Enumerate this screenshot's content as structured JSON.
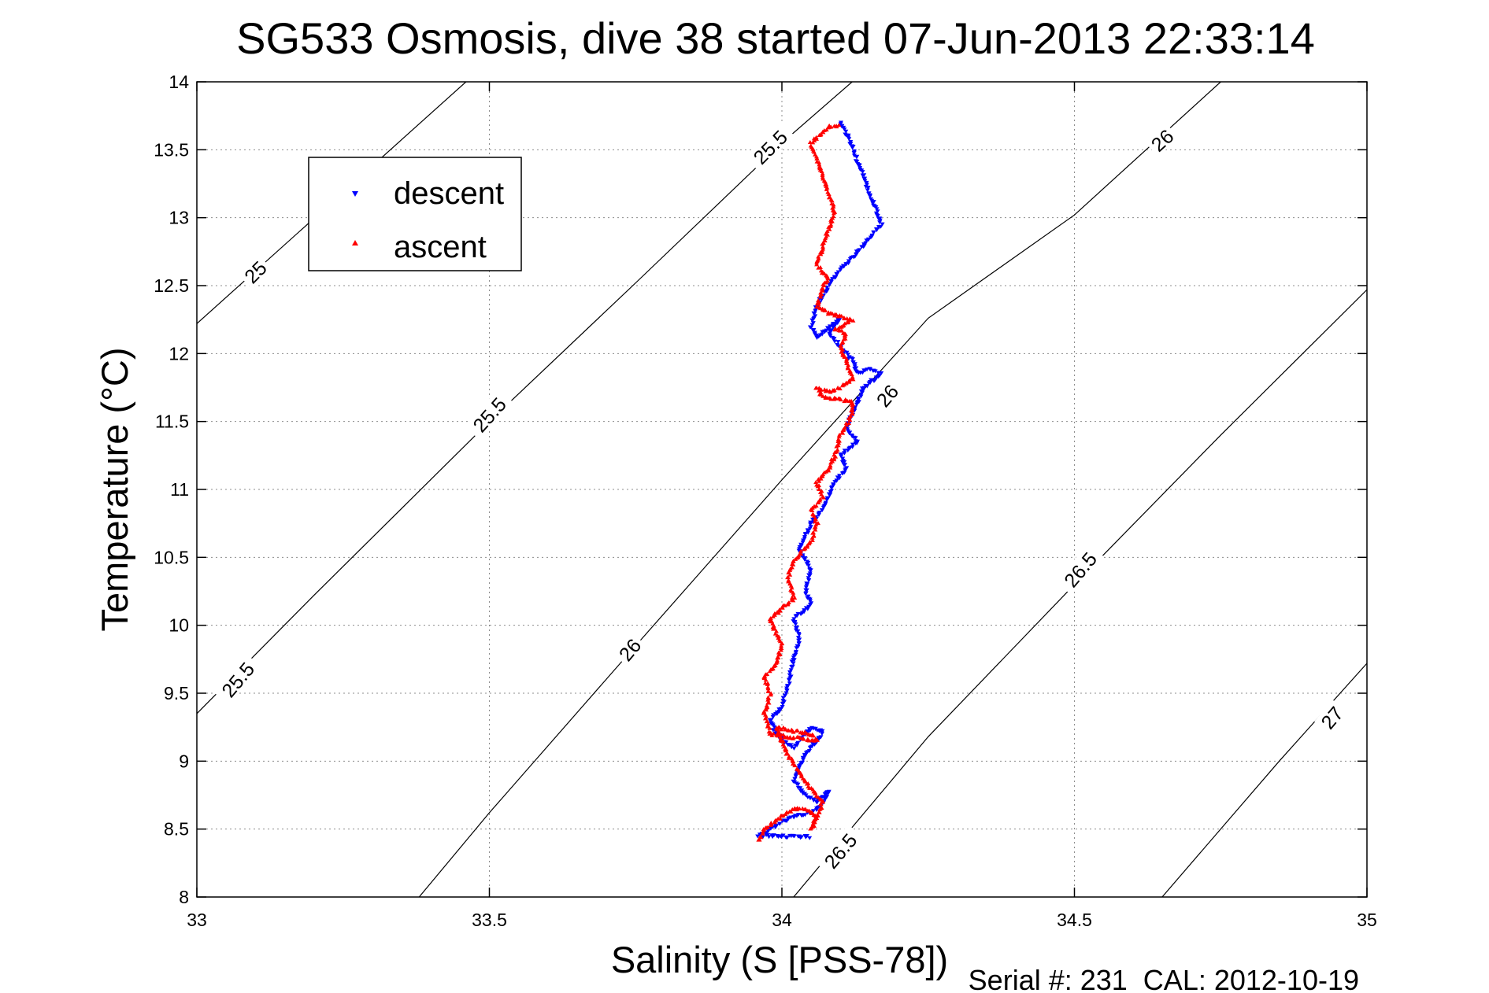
{
  "chart_data": {
    "type": "scatter",
    "title": "SG533 Osmosis, dive 38 started 07-Jun-2013 22:33:14",
    "xlabel": "Salinity (S [PSS-78])",
    "ylabel": "Temperature (°C)",
    "xlim": [
      33,
      35
    ],
    "ylim": [
      8,
      14
    ],
    "xticks": [
      33,
      33.5,
      34,
      34.5,
      35
    ],
    "xtick_labels": [
      "33",
      "33.5",
      "34",
      "34.5",
      "35"
    ],
    "yticks": [
      8,
      8.5,
      9,
      9.5,
      10,
      10.5,
      11,
      11.5,
      12,
      12.5,
      13,
      13.5,
      14
    ],
    "ytick_labels": [
      "8",
      "8.5",
      "9",
      "9.5",
      "10",
      "10.5",
      "11",
      "11.5",
      "12",
      "12.5",
      "13",
      "13.5",
      "14"
    ],
    "grid": true,
    "legend_position": "top-left",
    "footer": "Serial #: 231  CAL: 2012-10-19",
    "density_contours": [
      {
        "sigma": 25,
        "points": [
          [
            33.0,
            12.22
          ],
          [
            33.46,
            14.0
          ]
        ]
      },
      {
        "sigma": 25.5,
        "points": [
          [
            33.0,
            9.35
          ],
          [
            33.2,
            10.22
          ],
          [
            33.5,
            11.5
          ],
          [
            33.75,
            12.52
          ],
          [
            34.0,
            13.55
          ],
          [
            34.12,
            14.0
          ]
        ]
      },
      {
        "sigma": 26,
        "points": [
          [
            33.38,
            8.0
          ],
          [
            33.5,
            8.62
          ],
          [
            33.75,
            9.85
          ],
          [
            34.0,
            11.07
          ],
          [
            34.25,
            12.26
          ],
          [
            34.5,
            13.02
          ],
          [
            34.75,
            14.0
          ]
        ]
      },
      {
        "sigma": 26.5,
        "points": [
          [
            34.02,
            8.0
          ],
          [
            34.25,
            9.18
          ],
          [
            34.5,
            10.3
          ],
          [
            34.75,
            11.4
          ],
          [
            35.0,
            12.47
          ]
        ]
      },
      {
        "sigma": 27,
        "points": [
          [
            34.65,
            8.0
          ],
          [
            34.85,
            9.0
          ],
          [
            35.0,
            9.72
          ]
        ]
      }
    ],
    "contour_labels": [
      {
        "text": "25",
        "x": 33.1,
        "y": 12.6,
        "angle": -45
      },
      {
        "text": "25.5",
        "x": 33.98,
        "y": 13.52,
        "angle": -45
      },
      {
        "text": "25.5",
        "x": 33.5,
        "y": 11.55,
        "angle": -48
      },
      {
        "text": "25.5",
        "x": 33.07,
        "y": 9.6,
        "angle": -50
      },
      {
        "text": "26",
        "x": 33.74,
        "y": 9.82,
        "angle": -50
      },
      {
        "text": "26",
        "x": 34.18,
        "y": 11.69,
        "angle": -50
      },
      {
        "text": "26",
        "x": 34.65,
        "y": 13.57,
        "angle": -42
      },
      {
        "text": "26.5",
        "x": 34.51,
        "y": 10.41,
        "angle": -50
      },
      {
        "text": "26.5",
        "x": 34.1,
        "y": 8.34,
        "angle": -50
      },
      {
        "text": "27",
        "x": 34.94,
        "y": 9.32,
        "angle": -50
      }
    ],
    "series": [
      {
        "name": "descent",
        "marker": "triangle-down",
        "color": "#0000ff",
        "path": [
          [
            34.1,
            13.7
          ],
          [
            34.11,
            13.62
          ],
          [
            34.12,
            13.52
          ],
          [
            34.17,
            12.95
          ],
          [
            34.12,
            12.7
          ],
          [
            34.1,
            12.62
          ],
          [
            34.08,
            12.5
          ],
          [
            34.06,
            12.35
          ],
          [
            34.05,
            12.2
          ],
          [
            34.06,
            12.12
          ],
          [
            34.1,
            12.25
          ],
          [
            34.08,
            12.15
          ],
          [
            34.1,
            12.05
          ],
          [
            34.12,
            11.95
          ],
          [
            34.13,
            11.85
          ],
          [
            34.15,
            11.88
          ],
          [
            34.17,
            11.85
          ],
          [
            34.14,
            11.75
          ],
          [
            34.13,
            11.65
          ],
          [
            34.12,
            11.55
          ],
          [
            34.11,
            11.45
          ],
          [
            34.13,
            11.35
          ],
          [
            34.1,
            11.25
          ],
          [
            34.11,
            11.15
          ],
          [
            34.09,
            11.05
          ],
          [
            34.08,
            10.95
          ],
          [
            34.07,
            10.85
          ],
          [
            34.05,
            10.75
          ],
          [
            34.04,
            10.65
          ],
          [
            34.03,
            10.55
          ],
          [
            34.05,
            10.4
          ],
          [
            34.04,
            10.25
          ],
          [
            34.05,
            10.15
          ],
          [
            34.02,
            10.05
          ],
          [
            34.03,
            9.9
          ],
          [
            34.02,
            9.75
          ],
          [
            34.01,
            9.55
          ],
          [
            34.0,
            9.4
          ],
          [
            33.98,
            9.3
          ],
          [
            33.99,
            9.2
          ],
          [
            34.01,
            9.12
          ],
          [
            34.02,
            9.1
          ],
          [
            34.03,
            9.15
          ],
          [
            34.05,
            9.25
          ],
          [
            34.07,
            9.22
          ],
          [
            34.06,
            9.15
          ],
          [
            34.04,
            9.05
          ],
          [
            34.03,
            8.95
          ],
          [
            34.02,
            8.85
          ],
          [
            34.04,
            8.75
          ],
          [
            34.06,
            8.7
          ],
          [
            34.08,
            8.78
          ],
          [
            34.07,
            8.68
          ],
          [
            34.05,
            8.62
          ],
          [
            34.03,
            8.6
          ],
          [
            34.0,
            8.55
          ],
          [
            33.98,
            8.5
          ],
          [
            33.96,
            8.45
          ],
          [
            34.05,
            8.44
          ]
        ]
      },
      {
        "name": "ascent",
        "marker": "triangle-up",
        "color": "#ff0000",
        "path": [
          [
            33.96,
            8.42
          ],
          [
            33.97,
            8.5
          ],
          [
            34.0,
            8.6
          ],
          [
            34.02,
            8.65
          ],
          [
            34.04,
            8.65
          ],
          [
            34.06,
            8.6
          ],
          [
            34.05,
            8.5
          ],
          [
            34.07,
            8.7
          ],
          [
            34.05,
            8.8
          ],
          [
            34.03,
            8.92
          ],
          [
            34.01,
            9.05
          ],
          [
            34.0,
            9.15
          ],
          [
            33.99,
            9.25
          ],
          [
            34.05,
            9.2
          ],
          [
            34.06,
            9.15
          ],
          [
            33.98,
            9.2
          ],
          [
            33.97,
            9.35
          ],
          [
            33.98,
            9.5
          ],
          [
            33.97,
            9.62
          ],
          [
            33.99,
            9.72
          ],
          [
            34.0,
            9.85
          ],
          [
            33.98,
            10.05
          ],
          [
            34.02,
            10.2
          ],
          [
            34.01,
            10.35
          ],
          [
            34.02,
            10.48
          ],
          [
            34.05,
            10.62
          ],
          [
            34.06,
            10.75
          ],
          [
            34.05,
            10.85
          ],
          [
            34.07,
            10.95
          ],
          [
            34.06,
            11.05
          ],
          [
            34.08,
            11.15
          ],
          [
            34.09,
            11.25
          ],
          [
            34.1,
            11.4
          ],
          [
            34.12,
            11.55
          ],
          [
            34.12,
            11.65
          ],
          [
            34.07,
            11.68
          ],
          [
            34.06,
            11.75
          ],
          [
            34.08,
            11.72
          ],
          [
            34.1,
            11.75
          ],
          [
            34.12,
            11.82
          ],
          [
            34.11,
            11.95
          ],
          [
            34.1,
            12.05
          ],
          [
            34.11,
            12.15
          ],
          [
            34.09,
            12.18
          ],
          [
            34.12,
            12.25
          ],
          [
            34.08,
            12.3
          ],
          [
            34.06,
            12.35
          ],
          [
            34.07,
            12.5
          ],
          [
            34.08,
            12.55
          ],
          [
            34.06,
            12.65
          ],
          [
            34.07,
            12.8
          ],
          [
            34.08,
            12.92
          ],
          [
            34.09,
            13.05
          ],
          [
            34.07,
            13.3
          ],
          [
            34.05,
            13.55
          ],
          [
            34.08,
            13.67
          ],
          [
            34.1,
            13.68
          ]
        ]
      }
    ]
  }
}
